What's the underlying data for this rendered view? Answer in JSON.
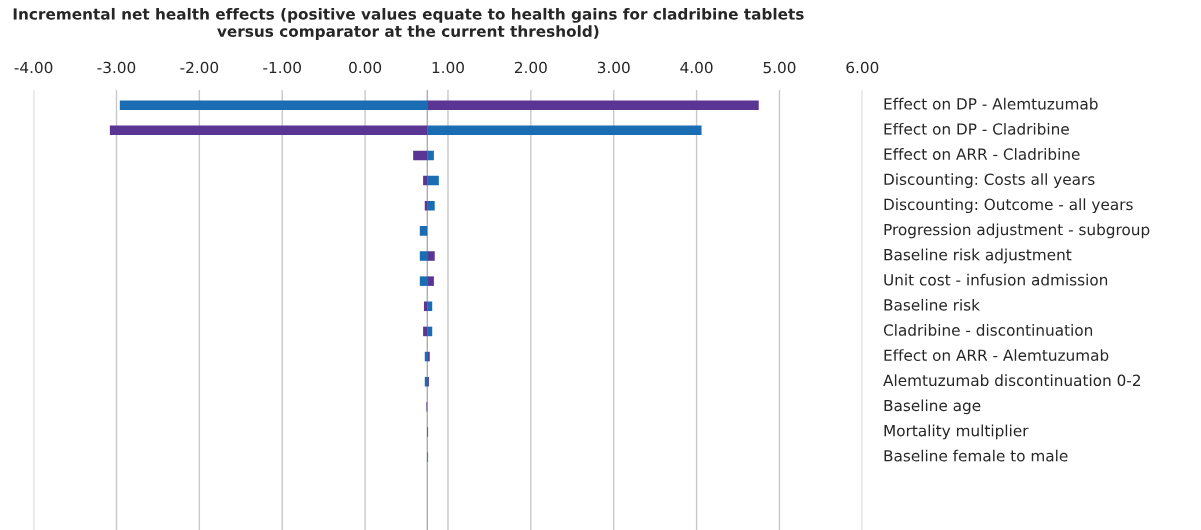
{
  "chart_data": {
    "type": "bar",
    "orientation": "horizontal",
    "title": "Incremental net health effects (positive values equate to health gains for cladribine tablets\nversus comparator at the current threshold)",
    "categories": [
      "Effect on DP - Alemtuzumab",
      "Effect on DP - Cladribine",
      "Effect on ARR - Cladribine",
      "Discounting: Costs all years",
      "Discounting: Outcome - all years",
      "Progression adjustment - subgroup",
      "Baseline risk adjustment",
      "Unit cost - infusion admission",
      "Baseline risk",
      "Cladribine - discontinuation",
      "Effect on ARR - Alemtuzumab",
      "Alemtuzumab discontinuation 0-2",
      "Baseline age",
      "Mortality multiplier",
      "Baseline female to male"
    ],
    "ref_lines": [
      {
        "axis": "x",
        "value": 0.75,
        "color": "#999999"
      }
    ],
    "series": [
      {
        "color": "#1b6db3",
        "base": [
          0.75,
          0.75,
          0.75,
          0.75,
          0.75,
          0.75,
          0.75,
          0.75,
          0.75,
          0.75,
          0.75,
          0.75,
          null,
          null,
          0.75
        ],
        "values": [
          -3.71,
          3.31,
          0.08,
          0.14,
          0.09,
          -0.09,
          -0.09,
          -0.09,
          0.06,
          0.06,
          -0.03,
          -0.03,
          null,
          null,
          0.01
        ]
      },
      {
        "color": "#5a3594",
        "base": [
          0.75,
          0.75,
          0.75,
          0.75,
          0.75,
          null,
          0.75,
          0.75,
          0.75,
          0.75,
          0.75,
          0.75,
          0.75,
          0.75,
          null
        ],
        "values": [
          4.0,
          -3.83,
          -0.17,
          -0.05,
          -0.03,
          null,
          0.09,
          0.08,
          -0.04,
          -0.05,
          0.03,
          0.02,
          -0.01,
          0.01,
          null
        ]
      }
    ],
    "xlim": [
      -4,
      6
    ],
    "xticks": [
      {
        "value": -4,
        "label": "-4.00"
      },
      {
        "value": -3,
        "label": "-3.00"
      },
      {
        "value": -2,
        "label": "-2.00"
      },
      {
        "value": -1,
        "label": "-1.00"
      },
      {
        "value": 0,
        "label": "0.00"
      },
      {
        "value": 1,
        "label": "1.00"
      },
      {
        "value": 2,
        "label": "2.00"
      },
      {
        "value": 3,
        "label": "3.00"
      },
      {
        "value": 4,
        "label": "4.00"
      },
      {
        "value": 5,
        "label": "5.00"
      },
      {
        "value": 6,
        "label": "6.00"
      }
    ],
    "grid": "x"
  }
}
